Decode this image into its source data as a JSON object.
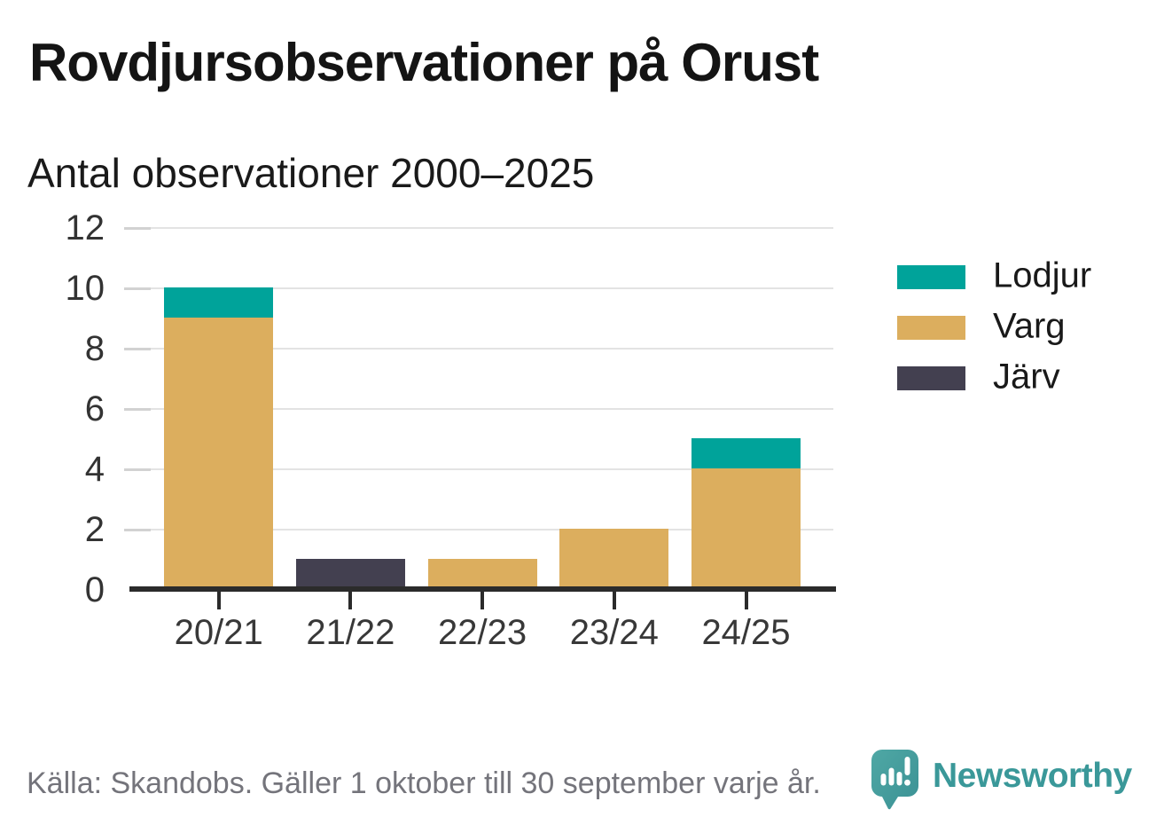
{
  "header": {
    "title": "Rovdjursobservationer på Orust",
    "subtitle": "Antal observationer 2000–2025"
  },
  "chart_data": {
    "type": "bar",
    "stacked": true,
    "title": "Rovdjursobservationer på Orust",
    "subtitle": "Antal observationer 2000–2025",
    "xlabel": "",
    "ylabel": "",
    "categories": [
      "20/21",
      "21/22",
      "22/23",
      "23/24",
      "24/25"
    ],
    "series": [
      {
        "name": "Lodjur",
        "color": "#00a39a",
        "values": [
          1,
          0,
          0,
          0,
          1
        ]
      },
      {
        "name": "Varg",
        "color": "#dcae5e",
        "values": [
          9,
          0,
          1,
          2,
          4
        ]
      },
      {
        "name": "Järv",
        "color": "#434050",
        "values": [
          0,
          1,
          0,
          0,
          0
        ]
      }
    ],
    "stack_order_bottom_to_top": [
      "Järv",
      "Varg",
      "Lodjur"
    ],
    "totals": [
      10,
      1,
      1,
      2,
      5
    ],
    "ylim": [
      0,
      12
    ],
    "yticks": [
      0,
      2,
      4,
      6,
      8,
      10,
      12
    ],
    "grid": true,
    "legend_position": "right"
  },
  "footer": {
    "source": "Källa: Skandobs. Gäller 1 oktober till 30 september varje år.",
    "brand": "Newsworthy"
  },
  "colors": {
    "lodjur": "#00a39a",
    "varg": "#dcae5e",
    "jarv": "#434050",
    "grid": "#e3e3e3",
    "axis_line": "#2b2b2b",
    "axis_text": "#333333",
    "title_text": "#141414",
    "source_text": "#74747b",
    "brand_teal": "#3a9899"
  },
  "icons": {
    "brand_logo": "newsworthy-speech-bubble-bar-chart-icon"
  }
}
